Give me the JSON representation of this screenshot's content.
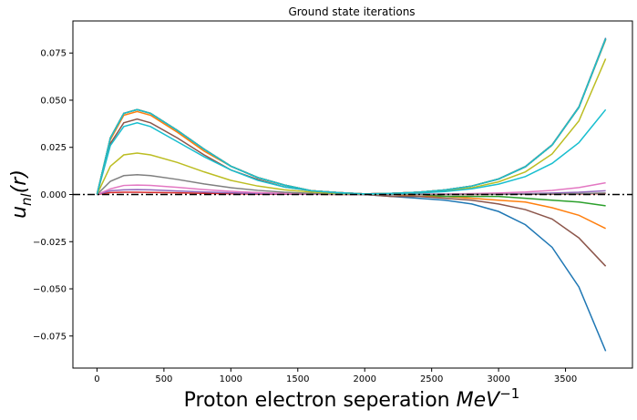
{
  "chart_data": {
    "type": "line",
    "title": "Ground state iterations",
    "xlabel": "Proton electron seperation MeV⁻¹",
    "xlabel_main": "Proton electron seperation ",
    "xlabel_unit": "MeV",
    "xlabel_exp": "−1",
    "ylabel": "u_nl(r)",
    "ylabel_base": "u",
    "ylabel_sub": "nl",
    "ylabel_arg": "(r)",
    "xlim": [
      -180,
      4000
    ],
    "ylim": [
      -0.092,
      0.092
    ],
    "xticks": [
      0,
      500,
      1000,
      1500,
      2000,
      2500,
      3000,
      3500
    ],
    "xtick_labels": [
      "0",
      "500",
      "1000",
      "1500",
      "2000",
      "2500",
      "3000",
      "3500"
    ],
    "yticks": [
      0.075,
      0.05,
      0.025,
      0.0,
      -0.025,
      -0.05,
      -0.075
    ],
    "ytick_labels": [
      "0.075",
      "0.050",
      "0.025",
      "0.000",
      "−0.025",
      "−0.050",
      "−0.075"
    ],
    "grid": false,
    "legend": false,
    "reference_line": {
      "y": 0.0,
      "style": "dash-dot",
      "color": "#000000"
    },
    "x": [
      0,
      100,
      200,
      300,
      400,
      600,
      800,
      1000,
      1200,
      1400,
      1600,
      1800,
      2000,
      2200,
      2400,
      2600,
      2800,
      3000,
      3200,
      3400,
      3600,
      3800
    ],
    "series": [
      {
        "color": "#1f77b4",
        "values": [
          0,
          0.03,
          0.043,
          0.045,
          0.043,
          0.034,
          0.024,
          0.015,
          0.009,
          0.005,
          0.002,
          0.001,
          0.0,
          -0.001,
          -0.002,
          -0.003,
          -0.005,
          -0.009,
          -0.016,
          -0.028,
          -0.049,
          -0.083
        ]
      },
      {
        "color": "#ff7f0e",
        "values": [
          0,
          0.029,
          0.042,
          0.044,
          0.042,
          0.033,
          0.023,
          0.015,
          0.009,
          0.005,
          0.002,
          0.001,
          0.0,
          0.0,
          -0.001,
          -0.001,
          -0.002,
          -0.003,
          -0.004,
          -0.007,
          -0.011,
          -0.018
        ]
      },
      {
        "color": "#2ca02c",
        "values": [
          0,
          0.03,
          0.043,
          0.045,
          0.043,
          0.034,
          0.024,
          0.015,
          0.009,
          0.005,
          0.002,
          0.001,
          0.0,
          0.0,
          0.0,
          -0.001,
          -0.001,
          -0.001,
          -0.002,
          -0.003,
          -0.004,
          -0.006
        ]
      },
      {
        "color": "#d62728",
        "values": [
          0,
          0.001,
          0.0012,
          0.0012,
          0.0011,
          0.0009,
          0.0006,
          0.0004,
          0.0002,
          0.0001,
          0.0001,
          0.0,
          0.0,
          0.0,
          0.0,
          0.0,
          0.0,
          0.0001,
          0.0001,
          0.0002,
          0.0003,
          0.0005
        ]
      },
      {
        "color": "#9467bd",
        "values": [
          0,
          0.002,
          0.0025,
          0.0026,
          0.0025,
          0.0019,
          0.0013,
          0.0009,
          0.0005,
          0.0003,
          0.0002,
          0.0001,
          0.0,
          0.0,
          0.0001,
          0.0001,
          0.0002,
          0.0003,
          0.0005,
          0.0008,
          0.0012,
          0.002
        ]
      },
      {
        "color": "#8c564b",
        "values": [
          0,
          0.027,
          0.038,
          0.04,
          0.038,
          0.03,
          0.021,
          0.013,
          0.008,
          0.004,
          0.002,
          0.001,
          0.0,
          -0.001,
          -0.001,
          -0.002,
          -0.003,
          -0.005,
          -0.008,
          -0.013,
          -0.023,
          -0.038
        ]
      },
      {
        "color": "#e377c2",
        "values": [
          0,
          0.003,
          0.0048,
          0.005,
          0.0048,
          0.0038,
          0.0026,
          0.0017,
          0.001,
          0.0006,
          0.0003,
          0.0001,
          0.0,
          0.0001,
          0.0002,
          0.0003,
          0.0005,
          0.0008,
          0.0013,
          0.0022,
          0.0037,
          0.0062
        ]
      },
      {
        "color": "#7f7f7f",
        "values": [
          0,
          0.007,
          0.01,
          0.0105,
          0.01,
          0.008,
          0.0056,
          0.0036,
          0.0022,
          0.0012,
          0.0006,
          0.0002,
          0.0,
          0.0,
          0.0,
          0.0,
          0.0001,
          0.0001,
          0.0002,
          0.0003,
          0.0005,
          0.0008
        ]
      },
      {
        "color": "#bcbd22",
        "values": [
          0,
          0.015,
          0.021,
          0.022,
          0.021,
          0.017,
          0.012,
          0.0075,
          0.0045,
          0.0025,
          0.0013,
          0.0005,
          0.0002,
          0.0004,
          0.0009,
          0.0019,
          0.0036,
          0.0067,
          0.012,
          0.0215,
          0.039,
          0.072
        ]
      },
      {
        "color": "#17becf",
        "values": [
          0,
          0.026,
          0.036,
          0.038,
          0.036,
          0.028,
          0.02,
          0.013,
          0.0075,
          0.004,
          0.002,
          0.0008,
          0.0002,
          0.0004,
          0.0008,
          0.0016,
          0.003,
          0.0055,
          0.0095,
          0.0165,
          0.0275,
          0.045
        ]
      },
      {
        "color": "#1f77b4",
        "values": [
          0,
          0.03,
          0.043,
          0.045,
          0.043,
          0.034,
          0.024,
          0.015,
          0.009,
          0.005,
          0.002,
          0.001,
          0.0003,
          0.0006,
          0.0012,
          0.0024,
          0.0045,
          0.0083,
          0.0149,
          0.0264,
          0.0465,
          0.083
        ]
      },
      {
        "color": "#ff7f0e",
        "values": [
          0,
          0.03,
          0.043,
          0.045,
          0.043,
          0.034,
          0.024,
          0.015,
          0.009,
          0.005,
          0.002,
          0.001,
          0.0003,
          0.0006,
          0.0012,
          0.0024,
          0.0045,
          0.0082,
          0.0147,
          0.0262,
          0.0462,
          0.082
        ]
      },
      {
        "color": "#2ca02c",
        "values": [
          0,
          0.03,
          0.043,
          0.045,
          0.043,
          0.034,
          0.024,
          0.015,
          0.009,
          0.005,
          0.002,
          0.001,
          0.0003,
          0.0006,
          0.0012,
          0.0024,
          0.0045,
          0.0082,
          0.0147,
          0.0262,
          0.0462,
          0.0825
        ]
      },
      {
        "color": "#d62728",
        "values": [
          0,
          0.03,
          0.043,
          0.045,
          0.043,
          0.034,
          0.024,
          0.015,
          0.009,
          0.005,
          0.002,
          0.001,
          0.0003,
          0.0006,
          0.0012,
          0.0024,
          0.0045,
          0.0082,
          0.0147,
          0.0262,
          0.0462,
          0.0825
        ]
      },
      {
        "color": "#9467bd",
        "values": [
          0,
          0.03,
          0.043,
          0.045,
          0.043,
          0.034,
          0.024,
          0.015,
          0.009,
          0.005,
          0.002,
          0.001,
          0.0003,
          0.0006,
          0.0012,
          0.0024,
          0.0045,
          0.0082,
          0.0147,
          0.0262,
          0.0462,
          0.0825
        ]
      },
      {
        "color": "#8c564b",
        "values": [
          0,
          0.03,
          0.043,
          0.045,
          0.043,
          0.034,
          0.024,
          0.015,
          0.009,
          0.005,
          0.002,
          0.001,
          0.0003,
          0.0006,
          0.0012,
          0.0024,
          0.0045,
          0.0082,
          0.0147,
          0.0262,
          0.0462,
          0.0825
        ]
      },
      {
        "color": "#e377c2",
        "values": [
          0,
          0.03,
          0.043,
          0.045,
          0.043,
          0.034,
          0.024,
          0.015,
          0.009,
          0.005,
          0.002,
          0.001,
          0.0003,
          0.0006,
          0.0012,
          0.0024,
          0.0045,
          0.0082,
          0.0147,
          0.0262,
          0.0462,
          0.0825
        ]
      },
      {
        "color": "#7f7f7f",
        "values": [
          0,
          0.03,
          0.043,
          0.045,
          0.043,
          0.034,
          0.024,
          0.015,
          0.009,
          0.005,
          0.002,
          0.001,
          0.0003,
          0.0006,
          0.0012,
          0.0024,
          0.0045,
          0.0082,
          0.0147,
          0.0262,
          0.0462,
          0.0825
        ]
      },
      {
        "color": "#bcbd22",
        "values": [
          0,
          0.03,
          0.043,
          0.045,
          0.043,
          0.034,
          0.024,
          0.015,
          0.009,
          0.005,
          0.002,
          0.001,
          0.0003,
          0.0006,
          0.0012,
          0.0024,
          0.0045,
          0.0082,
          0.0147,
          0.0262,
          0.0462,
          0.0825
        ]
      },
      {
        "color": "#17becf",
        "values": [
          0,
          0.03,
          0.043,
          0.045,
          0.043,
          0.034,
          0.024,
          0.015,
          0.009,
          0.005,
          0.002,
          0.001,
          0.0003,
          0.0006,
          0.0012,
          0.0024,
          0.0045,
          0.0082,
          0.0147,
          0.0262,
          0.0462,
          0.0825
        ]
      }
    ]
  }
}
